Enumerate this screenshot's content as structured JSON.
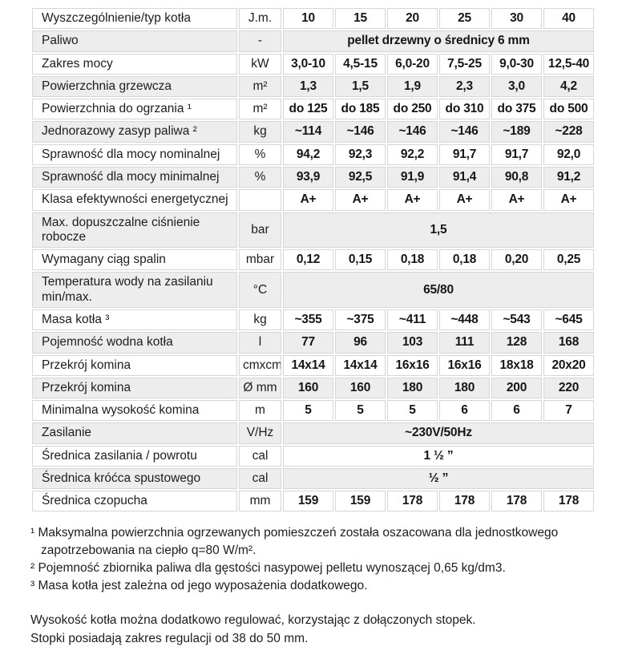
{
  "table": {
    "rows": [
      {
        "label": "Wyszczególnienie/typ kotła",
        "unit": "J.m.",
        "values": [
          "10",
          "15",
          "20",
          "25",
          "30",
          "40"
        ]
      },
      {
        "label": "Paliwo",
        "unit": "-",
        "span": "pellet drzewny o średnicy 6 mm"
      },
      {
        "label": "Zakres mocy",
        "unit": "kW",
        "values": [
          "3,0-10",
          "4,5-15",
          "6,0-20",
          "7,5-25",
          "9,0-30",
          "12,5-40"
        ]
      },
      {
        "label": "Powierzchnia grzewcza",
        "unit": "m²",
        "values": [
          "1,3",
          "1,5",
          "1,9",
          "2,3",
          "3,0",
          "4,2"
        ]
      },
      {
        "label": "Powierzchnia do ogrzania ¹",
        "unit": "m²",
        "values": [
          "do 125",
          "do 185",
          "do 250",
          "do 310",
          "do 375",
          "do 500"
        ]
      },
      {
        "label": "Jednorazowy zasyp paliwa ²",
        "unit": "kg",
        "values": [
          "~114",
          "~146",
          "~146",
          "~146",
          "~189",
          "~228"
        ]
      },
      {
        "label": "Sprawność dla mocy nominalnej",
        "unit": "%",
        "values": [
          "94,2",
          "92,3",
          "92,2",
          "91,7",
          "91,7",
          "92,0"
        ]
      },
      {
        "label": "Sprawność dla mocy minimalnej",
        "unit": "%",
        "values": [
          "93,9",
          "92,5",
          "91,9",
          "91,4",
          "90,8",
          "91,2"
        ]
      },
      {
        "label": "Klasa efektywności energetycznej",
        "unit": "",
        "values": [
          "A+",
          "A+",
          "A+",
          "A+",
          "A+",
          "A+"
        ]
      },
      {
        "label": "Max. dopuszczalne ciśnienie robocze",
        "unit": "bar",
        "span": "1,5"
      },
      {
        "label": "Wymagany ciąg spalin",
        "unit": "mbar",
        "values": [
          "0,12",
          "0,15",
          "0,18",
          "0,18",
          "0,20",
          "0,25"
        ]
      },
      {
        "label": "Temperatura wody na zasilaniu min/max.",
        "unit": "°C",
        "span": "65/80"
      },
      {
        "label": "Masa kotła ³",
        "unit": "kg",
        "values": [
          "~355",
          "~375",
          "~411",
          "~448",
          "~543",
          "~645"
        ]
      },
      {
        "label": "Pojemność wodna kotła",
        "unit": "l",
        "values": [
          "77",
          "96",
          "103",
          "111",
          "128",
          "168"
        ]
      },
      {
        "label": "Przekrój komina",
        "unit": "cmxcm",
        "values": [
          "14x14",
          "14x14",
          "16x16",
          "16x16",
          "18x18",
          "20x20"
        ]
      },
      {
        "label": "Przekrój komina",
        "unit": "Ø mm",
        "values": [
          "160",
          "160",
          "180",
          "180",
          "200",
          "220"
        ]
      },
      {
        "label": "Minimalna wysokość komina",
        "unit": "m",
        "values": [
          "5",
          "5",
          "5",
          "6",
          "6",
          "7"
        ]
      },
      {
        "label": "Zasilanie",
        "unit": "V/Hz",
        "span": "~230V/50Hz"
      },
      {
        "label": "Średnica zasilania / powrotu",
        "unit": "cal",
        "span": "1 ½ ”"
      },
      {
        "label": "Średnica króćca spustowego",
        "unit": "cal",
        "span": "½ ”"
      },
      {
        "label": "Średnica czopucha",
        "unit": "mm",
        "values": [
          "159",
          "159",
          "178",
          "178",
          "178",
          "178"
        ]
      }
    ]
  },
  "footnotes": [
    "¹ Maksymalna powierzchnia ogrzewanych pomieszczeń została oszacowana dla jednostkowego zapotrzebowania na ciepło q=80 W/m².",
    "² Pojemność zbiornika paliwa dla gęstości nasypowej pelletu wynoszącej 0,65 kg/dm3.",
    "³ Masa kotła jest zależna od jego wyposażenia dodatkowego."
  ],
  "notes": [
    "Wysokość kotła można dodatkowo regulować, korzystając z dołączonych stopek.",
    "Stopki posiadają zakres regulacji od 38 do 50 mm."
  ],
  "colors": {
    "row_shaded": "#ededee",
    "cell_border": "#d6d6d7",
    "text": "#1d1d1f"
  }
}
